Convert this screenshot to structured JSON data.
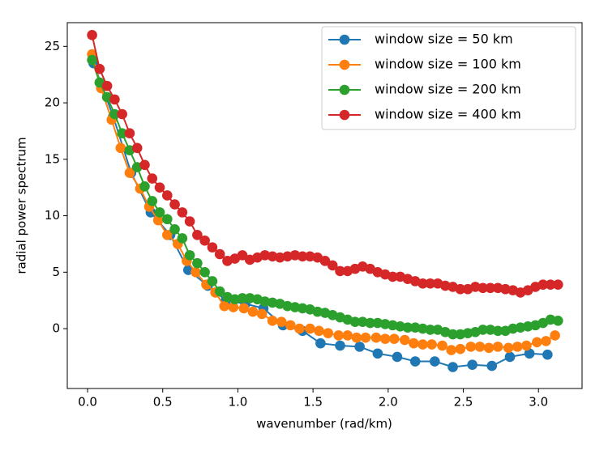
{
  "chart_data": {
    "type": "line",
    "xlabel": "wavenumber (rad/km)",
    "ylabel": "radial power spectrum",
    "xlim": [
      -0.135,
      3.29
    ],
    "ylim": [
      -5.3,
      27.1
    ],
    "xticks": [
      {
        "value": 0,
        "label": "0.0"
      },
      {
        "value": 0.5,
        "label": "0.5"
      },
      {
        "value": 1,
        "label": "1.0"
      },
      {
        "value": 1.5,
        "label": "1.5"
      },
      {
        "value": 2,
        "label": "2.0"
      },
      {
        "value": 2.5,
        "label": "2.5"
      },
      {
        "value": 3,
        "label": "3.0"
      }
    ],
    "yticks": [
      0,
      5,
      10,
      15,
      20,
      25
    ],
    "legend": "upper right",
    "series": [
      {
        "name": "window size = 50 km",
        "color": "#1f77b4",
        "x": [
          0.04,
          0.17,
          0.29,
          0.42,
          0.55,
          0.67,
          0.8,
          0.92,
          1.05,
          1.17,
          1.3,
          1.43,
          1.55,
          1.68,
          1.81,
          1.93,
          2.06,
          2.18,
          2.31,
          2.43,
          2.56,
          2.69,
          2.81,
          2.94,
          3.06
        ],
        "values": [
          23.5,
          18.8,
          13.8,
          10.3,
          8.3,
          5.2,
          3.8,
          2.5,
          2.2,
          1.8,
          0.3,
          -0.2,
          -1.3,
          -1.5,
          -1.6,
          -2.2,
          -2.5,
          -2.9,
          -2.9,
          -3.4,
          -3.2,
          -3.3,
          -2.5,
          -2.2,
          -2.3
        ]
      },
      {
        "name": "window size = 100 km",
        "color": "#ff7f0e",
        "x": [
          0.03,
          0.09,
          0.16,
          0.22,
          0.28,
          0.35,
          0.41,
          0.47,
          0.53,
          0.6,
          0.66,
          0.72,
          0.79,
          0.85,
          0.91,
          0.97,
          1.04,
          1.1,
          1.16,
          1.23,
          1.29,
          1.35,
          1.41,
          1.48,
          1.54,
          1.6,
          1.67,
          1.73,
          1.79,
          1.85,
          1.92,
          1.98,
          2.04,
          2.11,
          2.17,
          2.23,
          2.29,
          2.36,
          2.42,
          2.48,
          2.55,
          2.61,
          2.67,
          2.73,
          2.8,
          2.86,
          2.92,
          2.99,
          3.05,
          3.11
        ],
        "values": [
          24.3,
          21.3,
          18.5,
          16.0,
          13.8,
          12.4,
          10.8,
          9.6,
          8.3,
          7.5,
          6.0,
          5.0,
          3.9,
          3.2,
          2.0,
          1.9,
          1.8,
          1.5,
          1.3,
          0.7,
          0.6,
          0.3,
          0.0,
          0.0,
          -0.2,
          -0.4,
          -0.6,
          -0.6,
          -0.8,
          -0.8,
          -0.8,
          -0.9,
          -0.9,
          -1.0,
          -1.3,
          -1.4,
          -1.4,
          -1.5,
          -1.9,
          -1.8,
          -1.6,
          -1.6,
          -1.7,
          -1.6,
          -1.7,
          -1.6,
          -1.5,
          -1.2,
          -1.1,
          -0.6
        ]
      },
      {
        "name": "window size = 200 km",
        "color": "#2ca02c",
        "x": [
          0.03,
          0.08,
          0.13,
          0.18,
          0.23,
          0.28,
          0.33,
          0.38,
          0.43,
          0.48,
          0.53,
          0.58,
          0.63,
          0.68,
          0.73,
          0.78,
          0.83,
          0.88,
          0.93,
          0.98,
          1.03,
          1.08,
          1.13,
          1.18,
          1.23,
          1.28,
          1.33,
          1.38,
          1.43,
          1.48,
          1.53,
          1.58,
          1.63,
          1.68,
          1.73,
          1.78,
          1.83,
          1.88,
          1.93,
          1.98,
          2.03,
          2.08,
          2.13,
          2.18,
          2.23,
          2.28,
          2.33,
          2.38,
          2.43,
          2.48,
          2.53,
          2.58,
          2.63,
          2.68,
          2.73,
          2.78,
          2.83,
          2.88,
          2.93,
          2.98,
          3.03,
          3.08,
          3.13
        ],
        "values": [
          23.8,
          21.8,
          20.5,
          19.0,
          17.3,
          15.8,
          14.3,
          12.6,
          11.3,
          10.3,
          9.7,
          8.8,
          8.0,
          6.5,
          5.8,
          5.0,
          4.2,
          3.3,
          2.8,
          2.6,
          2.7,
          2.7,
          2.6,
          2.4,
          2.3,
          2.2,
          2.0,
          1.9,
          1.8,
          1.7,
          1.5,
          1.4,
          1.2,
          1.0,
          0.8,
          0.6,
          0.6,
          0.5,
          0.5,
          0.4,
          0.3,
          0.2,
          0.1,
          0.1,
          0.0,
          -0.1,
          -0.1,
          -0.3,
          -0.5,
          -0.5,
          -0.4,
          -0.3,
          -0.1,
          -0.1,
          -0.2,
          -0.2,
          0.0,
          0.1,
          0.2,
          0.3,
          0.5,
          0.8,
          0.7
        ]
      },
      {
        "name": "window size = 400 km",
        "color": "#d62728",
        "x": [
          0.03,
          0.08,
          0.13,
          0.18,
          0.23,
          0.28,
          0.33,
          0.38,
          0.43,
          0.48,
          0.53,
          0.58,
          0.63,
          0.68,
          0.73,
          0.78,
          0.83,
          0.88,
          0.93,
          0.98,
          1.03,
          1.08,
          1.13,
          1.18,
          1.23,
          1.28,
          1.33,
          1.38,
          1.43,
          1.48,
          1.53,
          1.58,
          1.63,
          1.68,
          1.73,
          1.78,
          1.83,
          1.88,
          1.93,
          1.98,
          2.03,
          2.08,
          2.13,
          2.18,
          2.23,
          2.28,
          2.33,
          2.38,
          2.43,
          2.48,
          2.53,
          2.58,
          2.63,
          2.68,
          2.73,
          2.78,
          2.83,
          2.88,
          2.93,
          2.98,
          3.03,
          3.08,
          3.13
        ],
        "values": [
          26.0,
          23.0,
          21.5,
          20.3,
          19.0,
          17.3,
          16.0,
          14.5,
          13.3,
          12.5,
          11.8,
          11.0,
          10.3,
          9.5,
          8.3,
          7.8,
          7.2,
          6.6,
          6.0,
          6.2,
          6.5,
          6.1,
          6.3,
          6.5,
          6.4,
          6.3,
          6.4,
          6.5,
          6.4,
          6.4,
          6.3,
          6.0,
          5.6,
          5.1,
          5.1,
          5.3,
          5.5,
          5.3,
          5.0,
          4.8,
          4.6,
          4.6,
          4.4,
          4.2,
          4.0,
          4.0,
          4.0,
          3.8,
          3.7,
          3.5,
          3.5,
          3.7,
          3.6,
          3.6,
          3.6,
          3.5,
          3.4,
          3.2,
          3.4,
          3.7,
          3.9,
          3.9,
          3.9
        ]
      }
    ]
  }
}
